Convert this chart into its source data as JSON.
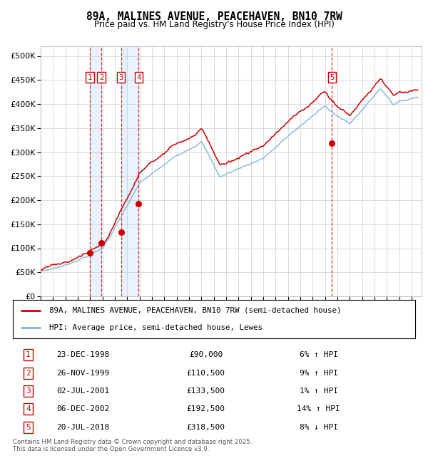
{
  "title": "89A, MALINES AVENUE, PEACEHAVEN, BN10 7RW",
  "subtitle": "Price paid vs. HM Land Registry's House Price Index (HPI)",
  "ylim": [
    0,
    520000
  ],
  "yticks": [
    0,
    50000,
    100000,
    150000,
    200000,
    250000,
    300000,
    350000,
    400000,
    450000,
    500000
  ],
  "xlim_start": 1995.0,
  "xlim_end": 2025.8,
  "plot_bg_color": "#ffffff",
  "grid_color": "#cccccc",
  "red_line_color": "#cc0000",
  "blue_line_color": "#7bafd4",
  "sale_marker_color": "#cc0000",
  "vline_color": "#cc0000",
  "shade_color": "#ddeeff",
  "legend_line1": "89A, MALINES AVENUE, PEACEHAVEN, BN10 7RW (semi-detached house)",
  "legend_line2": "HPI: Average price, semi-detached house, Lewes",
  "transactions": [
    {
      "num": 1,
      "date_label": "23-DEC-1998",
      "year": 1998.97,
      "price": 90000,
      "pct": "6%",
      "dir": "↑"
    },
    {
      "num": 2,
      "date_label": "26-NOV-1999",
      "year": 1999.9,
      "price": 110500,
      "pct": "9%",
      "dir": "↑"
    },
    {
      "num": 3,
      "date_label": "02-JUL-2001",
      "year": 2001.5,
      "price": 133500,
      "pct": "1%",
      "dir": "↑"
    },
    {
      "num": 4,
      "date_label": "06-DEC-2002",
      "year": 2002.92,
      "price": 192500,
      "pct": "14%",
      "dir": "↑"
    },
    {
      "num": 5,
      "date_label": "20-JUL-2018",
      "year": 2018.55,
      "price": 318500,
      "pct": "8%",
      "dir": "↓"
    }
  ],
  "footer": "Contains HM Land Registry data © Crown copyright and database right 2025.\nThis data is licensed under the Open Government Licence v3.0."
}
